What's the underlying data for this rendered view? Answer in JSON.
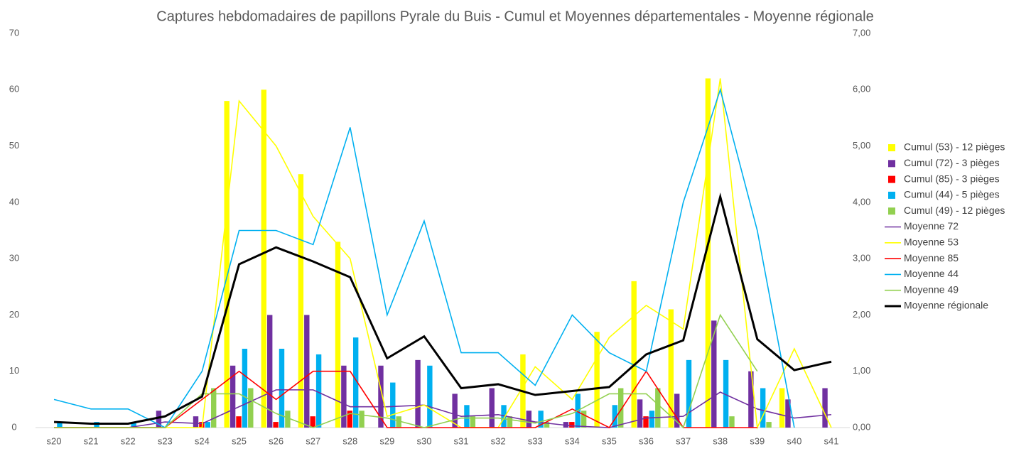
{
  "chart_data": {
    "type": "bar",
    "title": "Captures hebdomadaires de papillons Pyrale du Buis - Cumul et Moyennes départementales - Moyenne régionale",
    "categories": [
      "s20",
      "s21",
      "s22",
      "s23",
      "s24",
      "s25",
      "s26",
      "s27",
      "s28",
      "s29",
      "s30",
      "s31",
      "s32",
      "s33",
      "s34",
      "s35",
      "s36",
      "s37",
      "s38",
      "s39",
      "s40",
      "s41"
    ],
    "ylim": [
      0,
      70
    ],
    "yticks": [
      0,
      10,
      20,
      30,
      40,
      50,
      60,
      70
    ],
    "y2lim": [
      0,
      7
    ],
    "y2ticks": [
      {
        "value": 0,
        "label": "0,00"
      },
      {
        "value": 1,
        "label": "1,00"
      },
      {
        "value": 2,
        "label": "2,00"
      },
      {
        "value": 3,
        "label": "3,00"
      },
      {
        "value": 4,
        "label": "4,00"
      },
      {
        "value": 5,
        "label": "5,00"
      },
      {
        "value": 6,
        "label": "6,00"
      },
      {
        "value": 7,
        "label": "7,00"
      }
    ],
    "grid": false,
    "legend": "right",
    "series": [
      {
        "name": "Cumul (53) - 12 pièges",
        "type": "bar",
        "color": "#ffff00",
        "values": [
          0,
          0,
          0,
          0,
          0,
          58,
          60,
          45,
          33,
          0,
          0,
          0,
          0,
          13,
          0,
          17,
          26,
          21,
          62,
          0,
          7,
          0
        ]
      },
      {
        "name": "Cumul (72) - 3 pièges",
        "type": "bar",
        "color": "#7030a0",
        "values": [
          0,
          0,
          0,
          3,
          2,
          11,
          20,
          20,
          11,
          11,
          12,
          6,
          7,
          3,
          1,
          0,
          5,
          6,
          19,
          10,
          5,
          7
        ]
      },
      {
        "name": "Cumul (85) - 3 pièges",
        "type": "bar",
        "color": "#ff0000",
        "values": [
          0,
          0,
          0,
          0,
          1,
          2,
          1,
          2,
          3,
          0,
          0,
          0,
          0,
          0,
          1,
          0,
          2,
          0,
          0,
          0,
          0,
          0
        ]
      },
      {
        "name": "Cumul (44) - 5 pièges",
        "type": "bar",
        "color": "#00b0f0",
        "values": [
          1,
          1,
          1,
          0,
          1,
          14,
          14,
          13,
          16,
          8,
          11,
          4,
          4,
          3,
          6,
          4,
          3,
          12,
          12,
          7,
          0,
          0
        ]
      },
      {
        "name": "Cumul (49) - 12 pièges",
        "type": "bar",
        "color": "#92d050",
        "values": [
          0,
          0,
          0,
          0,
          7,
          7,
          3,
          0,
          3,
          2,
          0,
          2,
          2,
          1,
          3,
          7,
          7,
          0,
          2,
          1,
          0,
          0
        ]
      },
      {
        "name": "Moyenne 72",
        "type": "line",
        "axis": "y2",
        "color": "#7030a0",
        "values": [
          0,
          0,
          0,
          0.1,
          0.07,
          0.37,
          0.67,
          0.67,
          0.37,
          0.37,
          0.4,
          0.2,
          0.23,
          0.1,
          0.03,
          0,
          0.17,
          0.2,
          0.63,
          0.33,
          0.17,
          0.23
        ]
      },
      {
        "name": "Moyenne 53",
        "type": "line",
        "axis": "y2",
        "color": "#ffff00",
        "values": [
          0,
          0,
          0,
          0,
          0,
          5.8,
          5,
          3.75,
          3,
          0.2,
          0.4,
          0,
          0,
          1.08,
          0.5,
          1.6,
          2.17,
          1.75,
          6.2,
          0,
          1.4,
          0
        ]
      },
      {
        "name": "Moyenne 85",
        "type": "line",
        "axis": "y2",
        "color": "#ff0000",
        "values": [
          0,
          0,
          0,
          0,
          0.5,
          1,
          0.5,
          1,
          1,
          0,
          0,
          0,
          0,
          0,
          0.33,
          0,
          1,
          0,
          0,
          0,
          null,
          null
        ]
      },
      {
        "name": "Moyenne 44",
        "type": "line",
        "axis": "y2",
        "color": "#00b0f0",
        "values": [
          0.5,
          0.33,
          0.33,
          0,
          1,
          3.5,
          3.5,
          3.25,
          5.33,
          2,
          3.67,
          1.33,
          1.33,
          0.75,
          2,
          1.33,
          1,
          4,
          6,
          3.5,
          0,
          null
        ]
      },
      {
        "name": "Moyenne 49",
        "type": "line",
        "axis": "y2",
        "color": "#92d050",
        "values": [
          0,
          0,
          0,
          0,
          0.6,
          0.6,
          0.25,
          0,
          0.25,
          0.17,
          0,
          0.17,
          0.17,
          0.08,
          0.25,
          0.6,
          0.6,
          0,
          2,
          1,
          null,
          null
        ]
      },
      {
        "name": "Moyenne régionale",
        "type": "line",
        "axis": "y2",
        "color": "#000000",
        "values": [
          0.1,
          0.07,
          0.07,
          0.2,
          0.55,
          2.9,
          3.2,
          2.95,
          2.67,
          1.23,
          1.62,
          0.7,
          0.77,
          0.58,
          0.65,
          0.72,
          1.3,
          1.55,
          4.1,
          1.57,
          1.02,
          1.17
        ]
      }
    ]
  }
}
